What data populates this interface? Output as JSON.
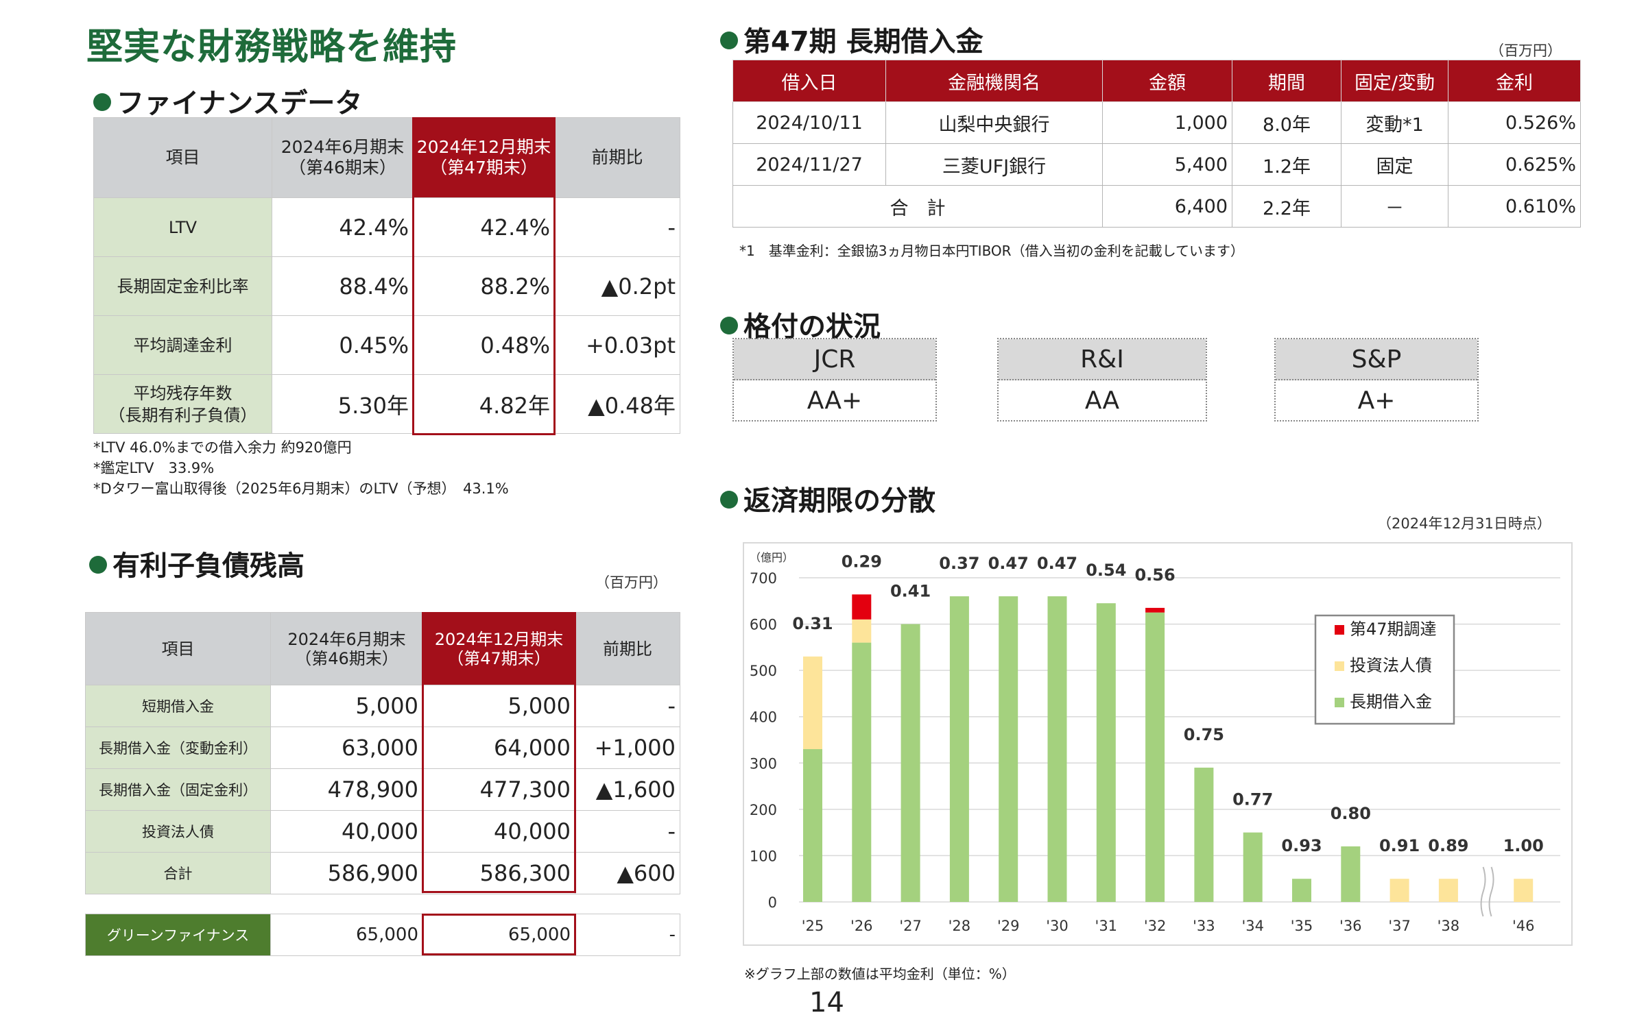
{
  "title": "堅実な財務戦略を維持",
  "page_number": "14",
  "finance": {
    "heading": "ファイナンスデータ",
    "headers": [
      "項目",
      "2024年6月期末\n（第46期末）",
      "2024年12月期末\n（第47期末）",
      "前期比"
    ],
    "rows": [
      {
        "item": "LTV",
        "prev": "42.4%",
        "curr": "42.4%",
        "diff": "-"
      },
      {
        "item": "長期固定金利比率",
        "prev": "88.4%",
        "curr": "88.2%",
        "diff": "▲0.2pt"
      },
      {
        "item": "平均調達金利",
        "prev": "0.45%",
        "curr": "0.48%",
        "diff": "+0.03pt"
      },
      {
        "item": "平均残存年数\n（長期有利子負債）",
        "prev": "5.30年",
        "curr": "4.82年",
        "diff": "▲0.48年"
      }
    ],
    "notes": [
      "*LTV 46.0%までの借入余力 約920億円",
      "*鑑定LTV　33.9%",
      "*Dタワー富山取得後（2025年6月期末）のLTV（予想）　43.1%"
    ]
  },
  "debt": {
    "heading": "有利子負債残高",
    "unit": "（百万円）",
    "headers": [
      "項目",
      "2024年6月期末\n（第46期末）",
      "2024年12月期末\n（第47期末）",
      "前期比"
    ],
    "rows": [
      {
        "item": "短期借入金",
        "prev": "5,000",
        "curr": "5,000",
        "diff": "-"
      },
      {
        "item": "長期借入金（変動金利）",
        "prev": "63,000",
        "curr": "64,000",
        "diff": "+1,000"
      },
      {
        "item": "長期借入金（固定金利）",
        "prev": "478,900",
        "curr": "477,300",
        "diff": "▲1,600"
      },
      {
        "item": "投資法人債",
        "prev": "40,000",
        "curr": "40,000",
        "diff": "-"
      },
      {
        "item": "合計",
        "prev": "586,900",
        "curr": "586,300",
        "diff": "▲600"
      }
    ],
    "green": {
      "item": "グリーンファイナンス",
      "prev": "65,000",
      "curr": "65,000",
      "diff": "-"
    }
  },
  "loans": {
    "heading": "第47期 長期借入金",
    "unit": "（百万円）",
    "headers": [
      "借入日",
      "金融機関名",
      "金額",
      "期間",
      "固定/変動",
      "金利"
    ],
    "rows": [
      {
        "date": "2024/10/11",
        "bank": "山梨中央銀行",
        "amount": "1,000",
        "term": "8.0年",
        "type": "変動*1",
        "rate": "0.526%"
      },
      {
        "date": "2024/11/27",
        "bank": "三菱UFJ銀行",
        "amount": "5,400",
        "term": "1.2年",
        "type": "固定",
        "rate": "0.625%"
      }
    ],
    "total": {
      "label": "合　計",
      "amount": "6,400",
      "term": "2.2年",
      "type": "－",
      "rate": "0.610%"
    },
    "note": "*1　基準金利：全銀協3ヵ月物日本円TIBOR（借入当初の金利を記載しています）"
  },
  "ratings": {
    "heading": "格付の状況",
    "items": [
      {
        "agency": "JCR",
        "grade": "AA+"
      },
      {
        "agency": "R&I",
        "grade": "AA"
      },
      {
        "agency": "S&P",
        "grade": "A+"
      }
    ]
  },
  "maturity": {
    "heading": "返済期限の分散",
    "asof": "（2024年12月31日時点）",
    "footnote": "※グラフ上部の数値は平均金利（単位：%）"
  },
  "colors": {
    "green_bar": "#a4d17e",
    "yellow_bar": "#fde49a",
    "red_bar": "#e3000f",
    "header_red": "#a30f1a",
    "title_green": "#1e6b3a"
  },
  "chart_data": {
    "type": "bar",
    "stacked": true,
    "yunit": "（億円）",
    "ylim": [
      0,
      700
    ],
    "yticks": [
      0,
      100,
      200,
      300,
      400,
      500,
      600,
      700
    ],
    "categories": [
      "'25",
      "'26",
      "'27",
      "'28",
      "'29",
      "'30",
      "'31",
      "'32",
      "'33",
      "'34",
      "'35",
      "'36",
      "'37",
      "'38",
      "'46"
    ],
    "axis_break_before": "'46",
    "series": [
      {
        "name": "長期借入金",
        "color": "#a4d17e",
        "values": [
          330,
          560,
          600,
          660,
          660,
          660,
          645,
          625,
          290,
          150,
          50,
          120,
          0,
          0,
          0
        ]
      },
      {
        "name": "投資法人債",
        "color": "#fde49a",
        "values": [
          200,
          50,
          0,
          0,
          0,
          0,
          0,
          0,
          0,
          0,
          0,
          0,
          50,
          50,
          50
        ]
      },
      {
        "name": "第47期調達",
        "color": "#e3000f",
        "values": [
          0,
          54,
          0,
          0,
          0,
          0,
          0,
          10,
          0,
          0,
          0,
          0,
          0,
          0,
          0
        ]
      }
    ],
    "labels": [
      "0.31",
      "0.29",
      "0.41",
      "0.37",
      "0.47",
      "0.47",
      "0.54",
      "0.56",
      "0.75",
      "0.77",
      "0.93",
      "0.80",
      "0.91",
      "0.89",
      "1.00"
    ],
    "legend": [
      "第47期調達",
      "投資法人債",
      "長期借入金"
    ],
    "legend_position": "top-right",
    "grid": true
  }
}
